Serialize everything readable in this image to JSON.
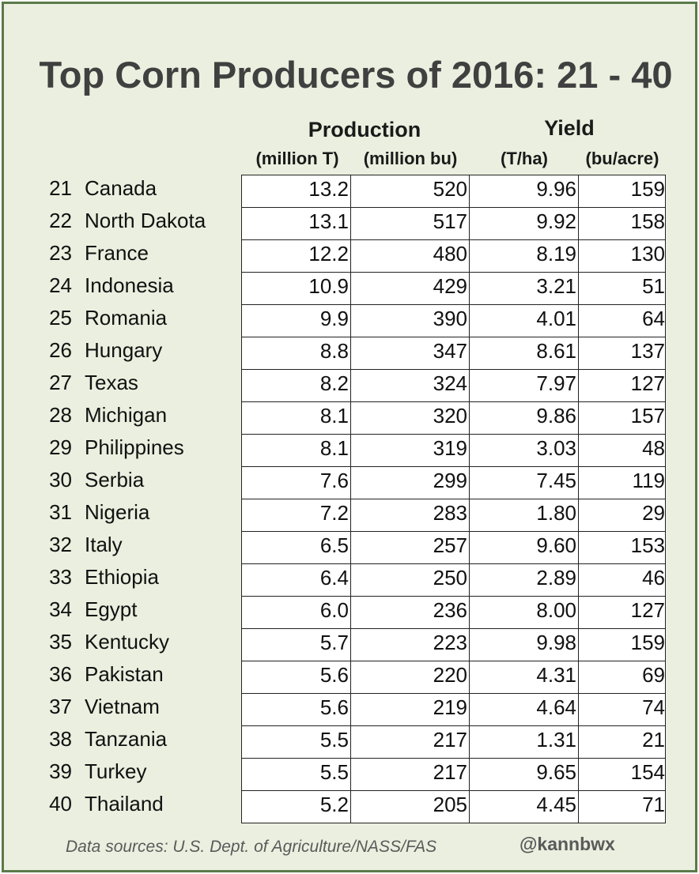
{
  "chart_data": {
    "type": "table",
    "title": "Top Corn Producers of 2016: 21 - 40",
    "column_groups": [
      {
        "label": "Production",
        "units": [
          "(million T)",
          "(million bu)"
        ]
      },
      {
        "label": "Yield",
        "units": [
          "(T/ha)",
          "(bu/acre)"
        ]
      }
    ],
    "rows": [
      {
        "rank": "21",
        "name": "Canada",
        "prod_t": "13.2",
        "prod_bu": "520",
        "yield_t": "9.96",
        "yield_bu": "159"
      },
      {
        "rank": "22",
        "name": "North Dakota",
        "prod_t": "13.1",
        "prod_bu": "517",
        "yield_t": "9.92",
        "yield_bu": "158"
      },
      {
        "rank": "23",
        "name": "France",
        "prod_t": "12.2",
        "prod_bu": "480",
        "yield_t": "8.19",
        "yield_bu": "130"
      },
      {
        "rank": "24",
        "name": "Indonesia",
        "prod_t": "10.9",
        "prod_bu": "429",
        "yield_t": "3.21",
        "yield_bu": "51"
      },
      {
        "rank": "25",
        "name": "Romania",
        "prod_t": "9.9",
        "prod_bu": "390",
        "yield_t": "4.01",
        "yield_bu": "64"
      },
      {
        "rank": "26",
        "name": "Hungary",
        "prod_t": "8.8",
        "prod_bu": "347",
        "yield_t": "8.61",
        "yield_bu": "137"
      },
      {
        "rank": "27",
        "name": "Texas",
        "prod_t": "8.2",
        "prod_bu": "324",
        "yield_t": "7.97",
        "yield_bu": "127"
      },
      {
        "rank": "28",
        "name": "Michigan",
        "prod_t": "8.1",
        "prod_bu": "320",
        "yield_t": "9.86",
        "yield_bu": "157"
      },
      {
        "rank": "29",
        "name": "Philippines",
        "prod_t": "8.1",
        "prod_bu": "319",
        "yield_t": "3.03",
        "yield_bu": "48"
      },
      {
        "rank": "30",
        "name": "Serbia",
        "prod_t": "7.6",
        "prod_bu": "299",
        "yield_t": "7.45",
        "yield_bu": "119"
      },
      {
        "rank": "31",
        "name": "Nigeria",
        "prod_t": "7.2",
        "prod_bu": "283",
        "yield_t": "1.80",
        "yield_bu": "29"
      },
      {
        "rank": "32",
        "name": "Italy",
        "prod_t": "6.5",
        "prod_bu": "257",
        "yield_t": "9.60",
        "yield_bu": "153"
      },
      {
        "rank": "33",
        "name": "Ethiopia",
        "prod_t": "6.4",
        "prod_bu": "250",
        "yield_t": "2.89",
        "yield_bu": "46"
      },
      {
        "rank": "34",
        "name": "Egypt",
        "prod_t": "6.0",
        "prod_bu": "236",
        "yield_t": "8.00",
        "yield_bu": "127"
      },
      {
        "rank": "35",
        "name": "Kentucky",
        "prod_t": "5.7",
        "prod_bu": "223",
        "yield_t": "9.98",
        "yield_bu": "159"
      },
      {
        "rank": "36",
        "name": "Pakistan",
        "prod_t": "5.6",
        "prod_bu": "220",
        "yield_t": "4.31",
        "yield_bu": "69"
      },
      {
        "rank": "37",
        "name": "Vietnam",
        "prod_t": "5.6",
        "prod_bu": "219",
        "yield_t": "4.64",
        "yield_bu": "74"
      },
      {
        "rank": "38",
        "name": "Tanzania",
        "prod_t": "5.5",
        "prod_bu": "217",
        "yield_t": "1.31",
        "yield_bu": "21"
      },
      {
        "rank": "39",
        "name": "Turkey",
        "prod_t": "5.5",
        "prod_bu": "217",
        "yield_t": "9.65",
        "yield_bu": "154"
      },
      {
        "rank": "40",
        "name": "Thailand",
        "prod_t": "5.2",
        "prod_bu": "205",
        "yield_t": "4.45",
        "yield_bu": "71"
      }
    ]
  },
  "footer": {
    "source": "Data sources: U.S. Dept. of Agriculture/NASS/FAS",
    "handle": "@kannbwx"
  },
  "colors": {
    "background": "#ebefdf",
    "border": "#5a7a4a",
    "title": "#404040"
  }
}
